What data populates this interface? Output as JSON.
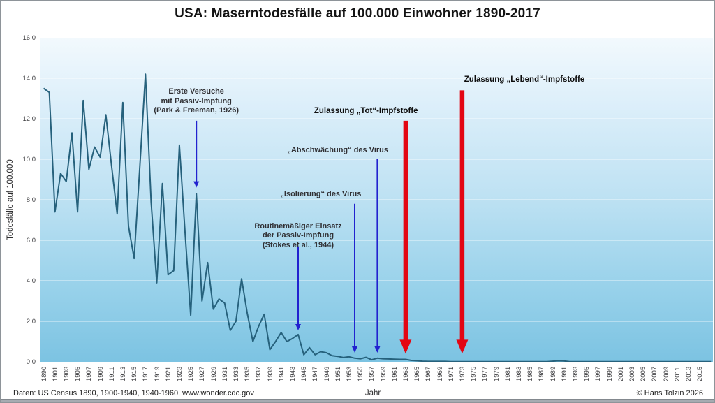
{
  "footer": {
    "source": "Daten: US Census 1890, 1900-1940, 1940-1960, www.wonder.cdc.gov",
    "copyright": "© Hans Tolzin 2026"
  },
  "chart_data": {
    "type": "line",
    "title": "USA: Maserntodesfälle auf 100.000 Einwohner 1890-2017",
    "xlabel": "Jahr",
    "ylabel": "Todesfälle auf 100.000",
    "ylim": [
      0,
      16
    ],
    "ytick_step": 2,
    "ytick_labels": [
      "16,0",
      "14,0",
      "12,0",
      "10,0",
      "8,0",
      "6,0",
      "4,0",
      "2,0",
      "0,0"
    ],
    "xtick_every": 2,
    "grid": "horizontal-white",
    "x": [
      1890,
      1900,
      1901,
      1902,
      1903,
      1904,
      1905,
      1906,
      1907,
      1908,
      1909,
      1910,
      1911,
      1912,
      1913,
      1914,
      1915,
      1916,
      1917,
      1918,
      1919,
      1920,
      1921,
      1922,
      1923,
      1924,
      1925,
      1926,
      1927,
      1928,
      1929,
      1930,
      1931,
      1932,
      1933,
      1934,
      1935,
      1936,
      1937,
      1938,
      1939,
      1940,
      1941,
      1942,
      1943,
      1944,
      1945,
      1946,
      1947,
      1948,
      1949,
      1950,
      1951,
      1952,
      1953,
      1954,
      1955,
      1956,
      1957,
      1958,
      1959,
      1960,
      1961,
      1962,
      1963,
      1964,
      1965,
      1966,
      1967,
      1968,
      1969,
      1970,
      1971,
      1972,
      1973,
      1974,
      1975,
      1976,
      1977,
      1978,
      1979,
      1980,
      1981,
      1982,
      1983,
      1984,
      1985,
      1986,
      1987,
      1988,
      1989,
      1990,
      1991,
      1992,
      1993,
      1994,
      1995,
      1996,
      1997,
      1998,
      1999,
      2000,
      2001,
      2002,
      2003,
      2004,
      2005,
      2006,
      2007,
      2008,
      2009,
      2010,
      2011,
      2012,
      2013,
      2014,
      2015,
      2016,
      2017
    ],
    "values": [
      13.5,
      13.3,
      7.4,
      9.3,
      8.9,
      11.3,
      7.4,
      12.9,
      9.5,
      10.6,
      10.1,
      12.2,
      9.7,
      7.3,
      12.8,
      6.7,
      5.1,
      9.6,
      14.2,
      7.9,
      3.9,
      8.8,
      4.3,
      4.5,
      10.7,
      6.4,
      2.3,
      8.3,
      3.0,
      4.9,
      2.6,
      3.1,
      2.9,
      1.55,
      2.0,
      4.1,
      2.4,
      1.0,
      1.75,
      2.35,
      0.6,
      1.0,
      1.45,
      1.0,
      1.15,
      1.35,
      0.35,
      0.7,
      0.35,
      0.5,
      0.45,
      0.3,
      0.27,
      0.21,
      0.25,
      0.18,
      0.15,
      0.22,
      0.1,
      0.18,
      0.15,
      0.14,
      0.13,
      0.12,
      0.12,
      0.07,
      0.05,
      0.03,
      0.02,
      0.02,
      0.02,
      0.02,
      0.01,
      0.01,
      0.01,
      0.01,
      0.01,
      0.01,
      0.01,
      0.01,
      0.01,
      0.01,
      0.01,
      0.01,
      0.01,
      0.01,
      0.01,
      0.01,
      0.01,
      0.01,
      0.03,
      0.05,
      0.04,
      0.01,
      0.01,
      0.01,
      0.01,
      0.01,
      0.01,
      0.01,
      0.01,
      0.01,
      0.01,
      0.01,
      0.01,
      0.01,
      0.01,
      0.01,
      0.01,
      0.01,
      0.01,
      0.01,
      0.01,
      0.01,
      0.01,
      0.01,
      0.01,
      0.01,
      0.01
    ],
    "colors": {
      "line": "#26617c",
      "red_arrow": "#e30613",
      "blue_arrow": "#2222cf",
      "grid": "rgba(255,255,255,0.75)"
    },
    "annotations": [
      {
        "id": "passiv-impfung-1926",
        "lines": [
          "Erste Versuche",
          "mit Passiv-Impfung",
          "(Park & Freeman, 1926)"
        ],
        "bold": false,
        "text_year": 1926,
        "text_top_value": 13.55,
        "arrow": {
          "year": 1926,
          "from_value": 11.9,
          "to_value": 8.6,
          "style": "blue"
        }
      },
      {
        "id": "stokes-1944",
        "lines": [
          "Routinemäßiger Einsatz",
          "der Passiv-Impfung",
          "(Stokes et al., 1944)"
        ],
        "bold": false,
        "text_year": 1944,
        "text_top_value": 6.9,
        "arrow": {
          "year": 1944,
          "from_value": 5.7,
          "to_value": 1.55,
          "style": "blue"
        }
      },
      {
        "id": "isolierung-des-virus",
        "lines": [
          "„Isolierung“ des Virus"
        ],
        "bold": false,
        "text_year": 1948,
        "text_top_value": 8.5,
        "arrow": {
          "year": 1954,
          "from_value": 7.8,
          "to_value": 0.45,
          "style": "blue"
        }
      },
      {
        "id": "abschwaechung-des-virus",
        "lines": [
          "„Abschwächung“ des Virus"
        ],
        "bold": false,
        "text_year": 1951,
        "text_top_value": 10.65,
        "arrow": {
          "year": 1958,
          "from_value": 10.0,
          "to_value": 0.45,
          "style": "blue"
        }
      },
      {
        "id": "zulassung-tot-impfstoffe",
        "lines": [
          "Zulassung „Tot“-Impfstoffe"
        ],
        "bold": true,
        "text_year": 1956,
        "text_top_value": 12.6,
        "arrow": {
          "year": 1963,
          "from_value": 11.9,
          "to_value": 0.4,
          "style": "red"
        }
      },
      {
        "id": "zulassung-lebend-impfstoffe",
        "lines": [
          "Zulassung „Lebend“-Impfstoffe"
        ],
        "bold": true,
        "text_year": 1984,
        "text_top_value": 14.15,
        "arrow": {
          "year": 1973,
          "from_value": 13.4,
          "to_value": 0.4,
          "style": "red"
        }
      }
    ]
  }
}
